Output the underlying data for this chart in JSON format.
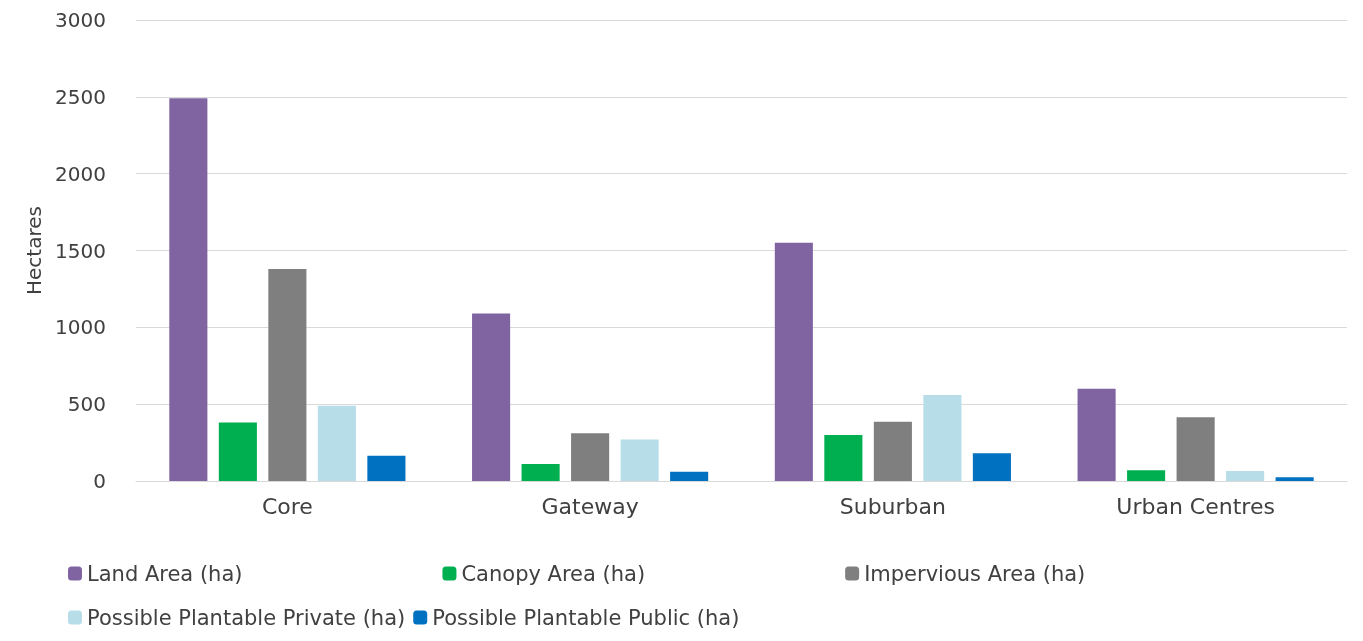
{
  "chart_data": {
    "type": "bar",
    "ylabel": "Hectares",
    "categories": [
      "Core",
      "Gateway",
      "Suburban",
      "Urban Centres"
    ],
    "series": [
      {
        "name": "Land Area (ha)",
        "color": "#8064a2",
        "values": [
          2490,
          1090,
          1550,
          600
        ]
      },
      {
        "name": "Canopy Area (ha)",
        "color": "#00b050",
        "values": [
          380,
          110,
          300,
          70
        ]
      },
      {
        "name": "Impervious Area (ha)",
        "color": "#7f7f7f",
        "values": [
          1380,
          310,
          385,
          415
        ]
      },
      {
        "name": "Possible Plantable Private (ha)",
        "color": "#b7dde8",
        "values": [
          490,
          270,
          560,
          65
        ]
      },
      {
        "name": "Possible Plantable Public (ha)",
        "color": "#0070c0",
        "values": [
          165,
          60,
          180,
          25
        ]
      }
    ],
    "ylim": [
      0,
      3000
    ],
    "yticks": [
      0,
      500,
      1000,
      1500,
      2000,
      2500,
      3000
    ],
    "grid": "y",
    "legend": "bottom"
  }
}
